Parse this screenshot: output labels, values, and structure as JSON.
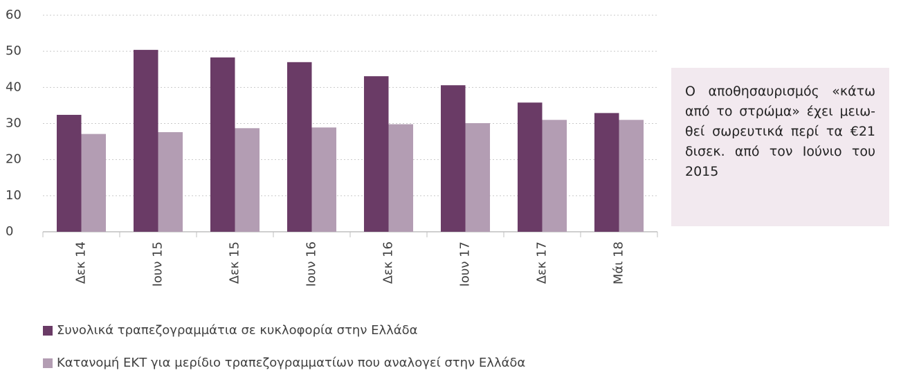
{
  "chart_data": {
    "type": "bar",
    "categories": [
      "Δεκ 14",
      "Ιουν 15",
      "Δεκ 15",
      "Ιουν 16",
      "Δεκ 16",
      "Ιουν 17",
      "Δεκ 17",
      "Μάι 18"
    ],
    "series": [
      {
        "name": "Συνολικά τραπεζογραμμάτια σε κυκλοφορία στην Ελλάδα",
        "color": "#6a3b66",
        "values": [
          32.4,
          50.4,
          48.3,
          47.0,
          43.1,
          40.6,
          35.8,
          32.9
        ]
      },
      {
        "name": "Κατανομή ΕΚΤ για μερίδιο τραπεζογραμματίων που αναλογεί στην Ελλάδα",
        "color": "#b39db3",
        "values": [
          27.1,
          27.6,
          28.7,
          28.9,
          29.8,
          30.1,
          31.0,
          31.0
        ]
      }
    ],
    "ylim": [
      0,
      60
    ],
    "yticks": [
      0,
      10,
      20,
      30,
      40,
      50,
      60
    ],
    "grid": true,
    "annotation": "Ο αποθησαυρισμός «κάτω από το στρώμα» έχει μειω-θεί σωρευτικά περί τα €21 δισεκ. από τον Ιούνιο του 2015"
  }
}
